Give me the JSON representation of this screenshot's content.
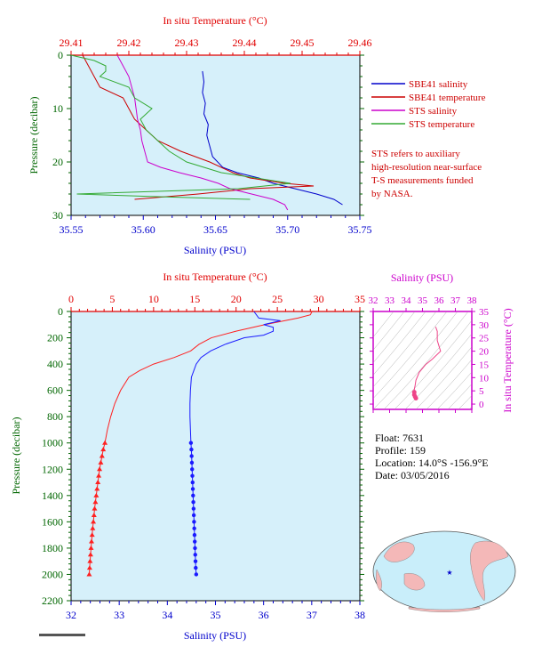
{
  "chart_data": [
    {
      "type": "line",
      "top_title": "In situ Temperature (°C)",
      "bottom_title": "Salinity (PSU)",
      "ylabel": "Pressure (decibar)",
      "xlim_salinity": [
        35.55,
        35.75
      ],
      "xlim_temperature": [
        29.41,
        29.46
      ],
      "ylim": [
        0,
        30
      ],
      "y_reversed": true,
      "salinity_ticks": [
        "35.55",
        "35.60",
        "35.65",
        "35.70",
        "35.75"
      ],
      "temperature_ticks": [
        "29.41",
        "29.42",
        "29.43",
        "29.44",
        "29.45",
        "29.46"
      ],
      "pressure_ticks": [
        "0",
        "10",
        "20",
        "30"
      ],
      "grid": false,
      "legend_position": "right",
      "series": [
        {
          "name": "SBE41 salinity",
          "color": "#0000cc",
          "axis": "salinity",
          "y": [
            3,
            5,
            7,
            9,
            11,
            13,
            15,
            17,
            19,
            21,
            22,
            23,
            24,
            25,
            26,
            27,
            28
          ],
          "x": [
            35.641,
            35.642,
            35.641,
            35.643,
            35.642,
            35.645,
            35.644,
            35.646,
            35.648,
            35.655,
            35.665,
            35.68,
            35.69,
            35.705,
            35.72,
            35.732,
            35.738
          ]
        },
        {
          "name": "SBE41 temperature",
          "color": "#cc0000",
          "axis": "temperature",
          "y": [
            0,
            2,
            4,
            6,
            8,
            10,
            12,
            14,
            16,
            18,
            20,
            22,
            23,
            24,
            24.5,
            25,
            26,
            27
          ],
          "x": [
            29.412,
            29.413,
            29.414,
            29.415,
            29.419,
            29.42,
            29.421,
            29.423,
            29.425,
            29.429,
            29.434,
            29.438,
            29.441,
            29.447,
            29.452,
            29.441,
            29.432,
            29.421
          ]
        },
        {
          "name": "STS salinity",
          "color": "#cc00cc",
          "axis": "salinity",
          "y": [
            0,
            2,
            4,
            6,
            8,
            10,
            12,
            14,
            16,
            18,
            20,
            21,
            22,
            23,
            24,
            25,
            26,
            27,
            28,
            29
          ],
          "x": [
            35.582,
            35.586,
            35.59,
            35.592,
            35.594,
            35.595,
            35.596,
            35.598,
            35.599,
            35.601,
            35.603,
            35.612,
            35.625,
            35.64,
            35.652,
            35.66,
            35.675,
            35.69,
            35.698,
            35.7
          ]
        },
        {
          "name": "STS temperature",
          "color": "#33aa33",
          "axis": "temperature",
          "y": [
            0,
            1,
            2,
            3,
            4,
            6,
            8,
            10,
            12,
            14,
            16,
            18,
            20,
            22,
            24,
            25,
            25.5,
            26,
            26.5,
            27
          ],
          "x": [
            29.41,
            29.414,
            29.416,
            29.416,
            29.415,
            29.42,
            29.421,
            29.424,
            29.422,
            29.423,
            29.425,
            29.427,
            29.43,
            29.436,
            29.448,
            29.439,
            29.425,
            29.411,
            29.425,
            29.441
          ]
        }
      ]
    },
    {
      "type": "line",
      "top_title": "In situ Temperature (°C)",
      "bottom_title": "Salinity (PSU)",
      "ylabel": "Pressure (decibar)",
      "xlim_salinity": [
        32,
        38
      ],
      "xlim_temperature": [
        0,
        35
      ],
      "ylim": [
        0,
        2200
      ],
      "y_reversed": true,
      "salinity_ticks": [
        "32",
        "33",
        "34",
        "35",
        "36",
        "37",
        "38"
      ],
      "temperature_ticks": [
        "0",
        "5",
        "10",
        "15",
        "20",
        "25",
        "30",
        "35"
      ],
      "pressure_ticks": [
        "0",
        "200",
        "400",
        "600",
        "800",
        "1000",
        "1200",
        "1400",
        "1600",
        "1800",
        "2000",
        "2200"
      ],
      "grid": false,
      "series": [
        {
          "name": "Temperature",
          "color": "#ff2020",
          "axis": "temperature",
          "y": [
            0,
            25,
            50,
            100,
            150,
            200,
            250,
            300,
            350,
            400,
            450,
            500,
            600,
            700,
            800,
            900,
            1000,
            1050,
            1100,
            1150,
            1200,
            1250,
            1300,
            1350,
            1400,
            1450,
            1500,
            1550,
            1600,
            1650,
            1700,
            1750,
            1800,
            1850,
            1900,
            1950,
            2000
          ],
          "x": [
            29.2,
            29.0,
            27.5,
            23.5,
            20.0,
            17.0,
            15.5,
            14.5,
            12.5,
            10.0,
            8.3,
            7.0,
            6.0,
            5.3,
            4.8,
            4.4,
            4.1,
            3.9,
            3.75,
            3.6,
            3.45,
            3.35,
            3.25,
            3.15,
            3.05,
            2.95,
            2.85,
            2.78,
            2.7,
            2.62,
            2.55,
            2.48,
            2.42,
            2.36,
            2.3,
            2.25,
            2.2
          ]
        },
        {
          "name": "Salinity",
          "color": "#1a1aff",
          "axis": "salinity",
          "y": [
            0,
            50,
            70,
            100,
            120,
            150,
            180,
            200,
            250,
            300,
            350,
            400,
            450,
            500,
            600,
            700,
            800,
            900,
            1000,
            1050,
            1100,
            1150,
            1200,
            1250,
            1300,
            1350,
            1400,
            1450,
            1500,
            1550,
            1600,
            1650,
            1700,
            1750,
            1800,
            1850,
            1900,
            1950,
            2000
          ],
          "x": [
            35.8,
            35.9,
            36.35,
            36.0,
            36.2,
            36.2,
            36.0,
            35.6,
            35.2,
            34.9,
            34.7,
            34.6,
            34.55,
            34.5,
            34.48,
            34.47,
            34.47,
            34.48,
            34.49,
            34.5,
            34.505,
            34.51,
            34.515,
            34.52,
            34.525,
            34.53,
            34.535,
            34.54,
            34.545,
            34.55,
            34.555,
            34.56,
            34.565,
            34.57,
            34.575,
            34.58,
            34.585,
            34.59,
            34.6
          ]
        }
      ]
    },
    {
      "type": "scatter",
      "top_title": "Salinity (PSU)",
      "right_label": "In situ Temperature (°C)",
      "xlim": [
        32,
        38
      ],
      "ylim": [
        -2,
        35
      ],
      "x_ticks": [
        "32",
        "33",
        "34",
        "35",
        "36",
        "37",
        "38"
      ],
      "y_ticks": [
        "0",
        "5",
        "10",
        "15",
        "20",
        "25",
        "30",
        "35"
      ],
      "series": [
        {
          "name": "T-S",
          "color": "#ee4488",
          "x": [
            35.8,
            35.9,
            35.9,
            36.1,
            35.6,
            35.2,
            34.8,
            34.6,
            34.55,
            34.5,
            34.5,
            34.5,
            34.55,
            34.6
          ],
          "y": [
            29.2,
            27.5,
            24.0,
            20.0,
            17.0,
            15.0,
            12.0,
            9.0,
            7.0,
            5.5,
            4.5,
            3.5,
            2.8,
            2.2
          ]
        }
      ]
    }
  ],
  "info": {
    "float": "Float:  7631",
    "profile": "Profile:  159",
    "location": "Location:  14.0°S  -156.9°E",
    "date": "Date:  03/05/2016"
  },
  "legend": {
    "items": [
      {
        "label": "SBE41 salinity",
        "color": "#0000cc"
      },
      {
        "label": "SBE41 temperature",
        "color": "#cc0000"
      },
      {
        "label": "STS salinity",
        "color": "#cc00cc"
      },
      {
        "label": "STS temperature",
        "color": "#33aa33"
      }
    ],
    "note_lines": [
      "STS refers to auxiliary",
      "high-resolution near-surface",
      "T-S measurements funded",
      "by NASA."
    ]
  },
  "colors": {
    "plot_bg": "#d6f0fa",
    "temperature_axis": "#e00000",
    "salinity_axis": "#0000cc",
    "pressure_axis": "#006600",
    "ts_axis": "#cc00cc"
  }
}
